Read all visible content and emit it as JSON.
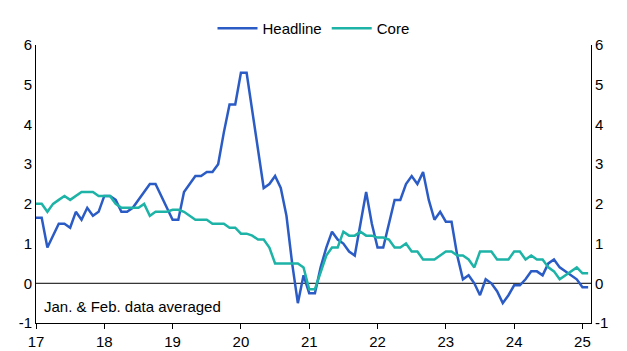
{
  "chart_data": {
    "type": "line",
    "categories": [
      "17",
      null,
      null,
      null,
      null,
      null,
      null,
      null,
      null,
      null,
      null,
      null,
      "18",
      null,
      null,
      null,
      null,
      null,
      null,
      null,
      null,
      null,
      null,
      null,
      "19",
      null,
      null,
      null,
      null,
      null,
      null,
      null,
      null,
      null,
      null,
      null,
      "20",
      null,
      null,
      null,
      null,
      null,
      null,
      null,
      null,
      null,
      null,
      null,
      "21",
      null,
      null,
      null,
      null,
      null,
      null,
      null,
      null,
      null,
      null,
      null,
      "22",
      null,
      null,
      null,
      null,
      null,
      null,
      null,
      null,
      null,
      null,
      null,
      "23",
      null,
      null,
      null,
      null,
      null,
      null,
      null,
      null,
      null,
      null,
      null,
      "24",
      null,
      null,
      null,
      null,
      null,
      null,
      null,
      null,
      null,
      null,
      null,
      "25",
      null
    ],
    "series": [
      {
        "name": "Headline",
        "color": "#2b5bc4",
        "values": [
          1.65,
          1.65,
          0.9,
          1.2,
          1.5,
          1.5,
          1.4,
          1.8,
          1.6,
          1.9,
          1.7,
          1.8,
          2.2,
          2.2,
          2.1,
          1.8,
          1.8,
          1.9,
          2.1,
          2.3,
          2.5,
          2.5,
          2.2,
          1.9,
          1.6,
          1.6,
          2.3,
          2.5,
          2.7,
          2.7,
          2.8,
          2.8,
          3.0,
          3.8,
          4.5,
          4.5,
          5.3,
          5.3,
          4.3,
          3.3,
          2.4,
          2.5,
          2.7,
          2.4,
          1.7,
          0.5,
          -0.5,
          0.2,
          -0.25,
          -0.25,
          0.4,
          0.9,
          1.3,
          1.1,
          1.0,
          0.8,
          0.7,
          1.5,
          2.3,
          1.5,
          0.9,
          0.9,
          1.5,
          2.1,
          2.1,
          2.5,
          2.7,
          2.5,
          2.8,
          2.1,
          1.6,
          1.8,
          1.55,
          1.55,
          0.7,
          0.1,
          0.2,
          0.0,
          -0.3,
          0.1,
          0.0,
          -0.2,
          -0.5,
          -0.3,
          -0.05,
          -0.05,
          0.1,
          0.3,
          0.3,
          0.2,
          0.5,
          0.6,
          0.4,
          0.3,
          0.2,
          0.1,
          -0.1,
          -0.1
        ]
      },
      {
        "name": "Core",
        "color": "#1db3a6",
        "values": [
          2.0,
          2.0,
          1.8,
          2.0,
          2.1,
          2.2,
          2.1,
          2.2,
          2.3,
          2.3,
          2.3,
          2.2,
          2.2,
          2.2,
          2.0,
          1.9,
          1.9,
          1.9,
          1.9,
          2.0,
          1.7,
          1.8,
          1.8,
          1.8,
          1.85,
          1.85,
          1.8,
          1.7,
          1.6,
          1.6,
          1.6,
          1.5,
          1.5,
          1.5,
          1.4,
          1.4,
          1.25,
          1.25,
          1.2,
          1.1,
          1.1,
          0.9,
          0.5,
          0.5,
          0.5,
          0.5,
          0.5,
          0.4,
          -0.15,
          -0.15,
          0.3,
          0.7,
          0.9,
          0.9,
          1.3,
          1.2,
          1.2,
          1.3,
          1.2,
          1.2,
          1.15,
          1.15,
          1.1,
          0.9,
          0.9,
          1.0,
          0.8,
          0.8,
          0.6,
          0.6,
          0.6,
          0.7,
          0.8,
          0.8,
          0.7,
          0.7,
          0.6,
          0.4,
          0.8,
          0.8,
          0.8,
          0.6,
          0.6,
          0.6,
          0.8,
          0.8,
          0.6,
          0.7,
          0.6,
          0.6,
          0.4,
          0.3,
          0.1,
          0.2,
          0.3,
          0.4,
          0.25,
          0.25
        ]
      }
    ],
    "ylim": [
      -1,
      6
    ],
    "yticks": [
      -1,
      0,
      1,
      2,
      3,
      4,
      5,
      6
    ],
    "grid": false,
    "legend": "top",
    "annotations": [
      "Jan. & Feb. data averaged"
    ]
  }
}
